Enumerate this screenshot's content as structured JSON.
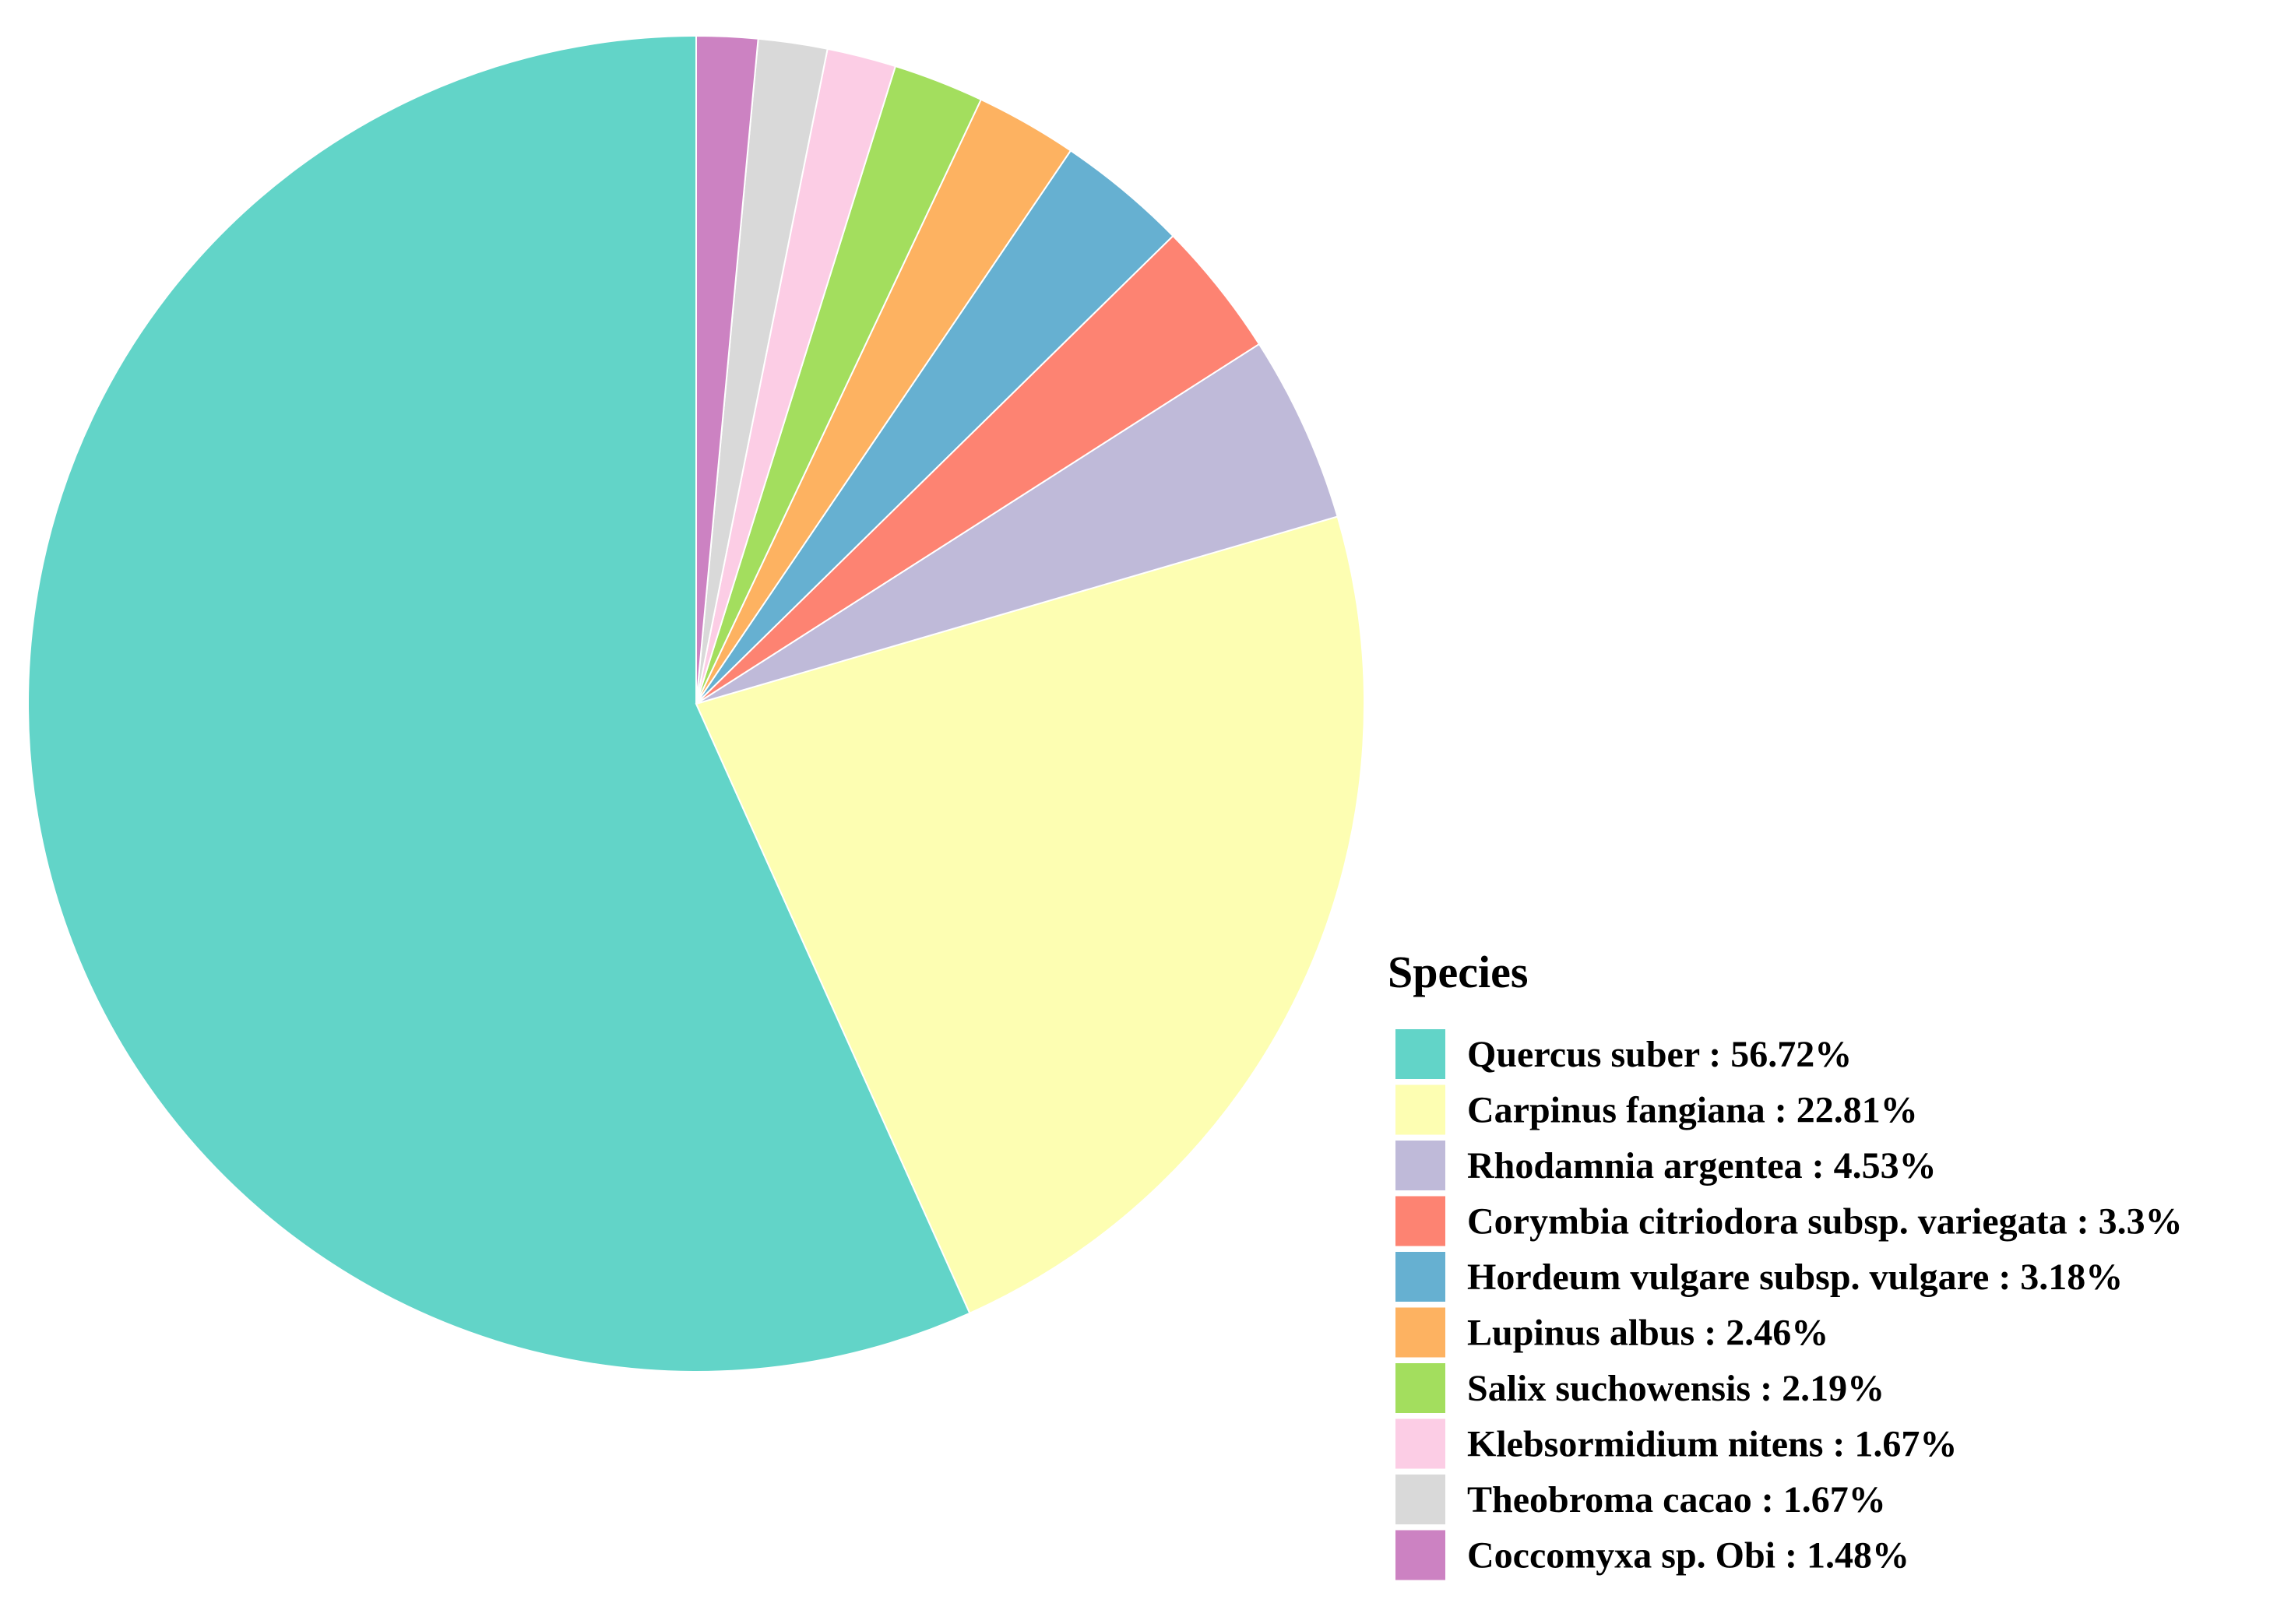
{
  "chart_data": {
    "type": "pie",
    "title": "",
    "legend_title": "Species",
    "legend_position": "bottom-right",
    "start_angle": "12 o'clock",
    "direction": "counterclockwise",
    "slices": [
      {
        "label": "Quercus suber : 56.72%",
        "name": "Quercus suber",
        "value": 56.72,
        "color": "#62D4C8"
      },
      {
        "label": "Carpinus fangiana : 22.81%",
        "name": "Carpinus fangiana",
        "value": 22.81,
        "color": "#FDFEB2"
      },
      {
        "label": "Rhodamnia argentea : 4.53%",
        "name": "Rhodamnia argentea",
        "value": 4.53,
        "color": "#BFBAD9"
      },
      {
        "label": "Corymbia citriodora subsp. variegata : 3.3%",
        "name": "Corymbia citriodora subsp. variegata",
        "value": 3.3,
        "color": "#FD8372"
      },
      {
        "label": "Hordeum vulgare subsp. vulgare : 3.18%",
        "name": "Hordeum vulgare subsp. vulgare",
        "value": 3.18,
        "color": "#66B0D1"
      },
      {
        "label": "Lupinus albus : 2.46%",
        "name": "Lupinus albus",
        "value": 2.46,
        "color": "#FDB261"
      },
      {
        "label": "Salix suchowensis : 2.19%",
        "name": "Salix suchowensis",
        "value": 2.19,
        "color": "#A3DE5E"
      },
      {
        "label": "Klebsormidium nitens : 1.67%",
        "name": "Klebsormidium nitens",
        "value": 1.67,
        "color": "#FCCDE5"
      },
      {
        "label": "Theobroma cacao : 1.67%",
        "name": "Theobroma cacao",
        "value": 1.67,
        "color": "#D9D9D9"
      },
      {
        "label": "Coccomyxa sp. Obi : 1.48%",
        "name": "Coccomyxa sp. Obi",
        "value": 1.48,
        "color": "#CC82C2"
      }
    ]
  }
}
